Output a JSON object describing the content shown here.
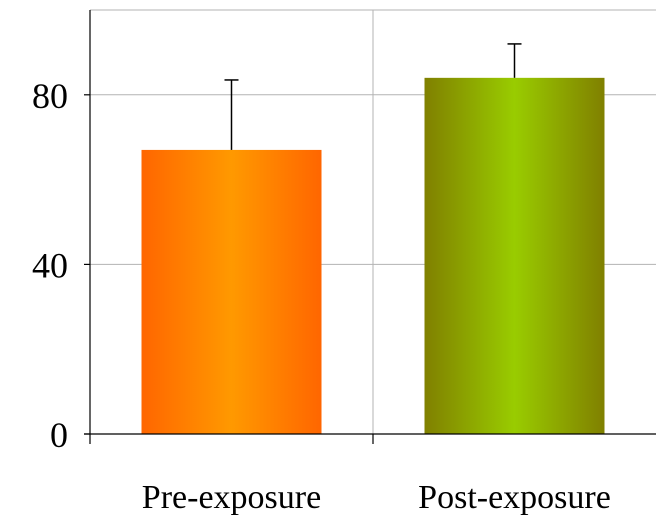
{
  "chart_data": {
    "type": "bar",
    "title": "",
    "xlabel": "",
    "ylabel": "",
    "categories": [
      "Pre-exposure",
      "Post-exposure"
    ],
    "values": [
      67,
      84
    ],
    "error_upper": [
      16.5,
      8
    ],
    "ylim": [
      0,
      100
    ],
    "yticks": [
      0,
      40,
      80
    ],
    "ytick_labels": [
      "0",
      "40",
      "80"
    ],
    "grid": true,
    "legend": "none",
    "bar_colors": [
      {
        "edge": "#ff6600",
        "center": "#ff9900"
      },
      {
        "edge": "#808000",
        "center": "#99cc00"
      }
    ],
    "axis_color": "#000000",
    "grid_color": "#b3b3b3"
  }
}
